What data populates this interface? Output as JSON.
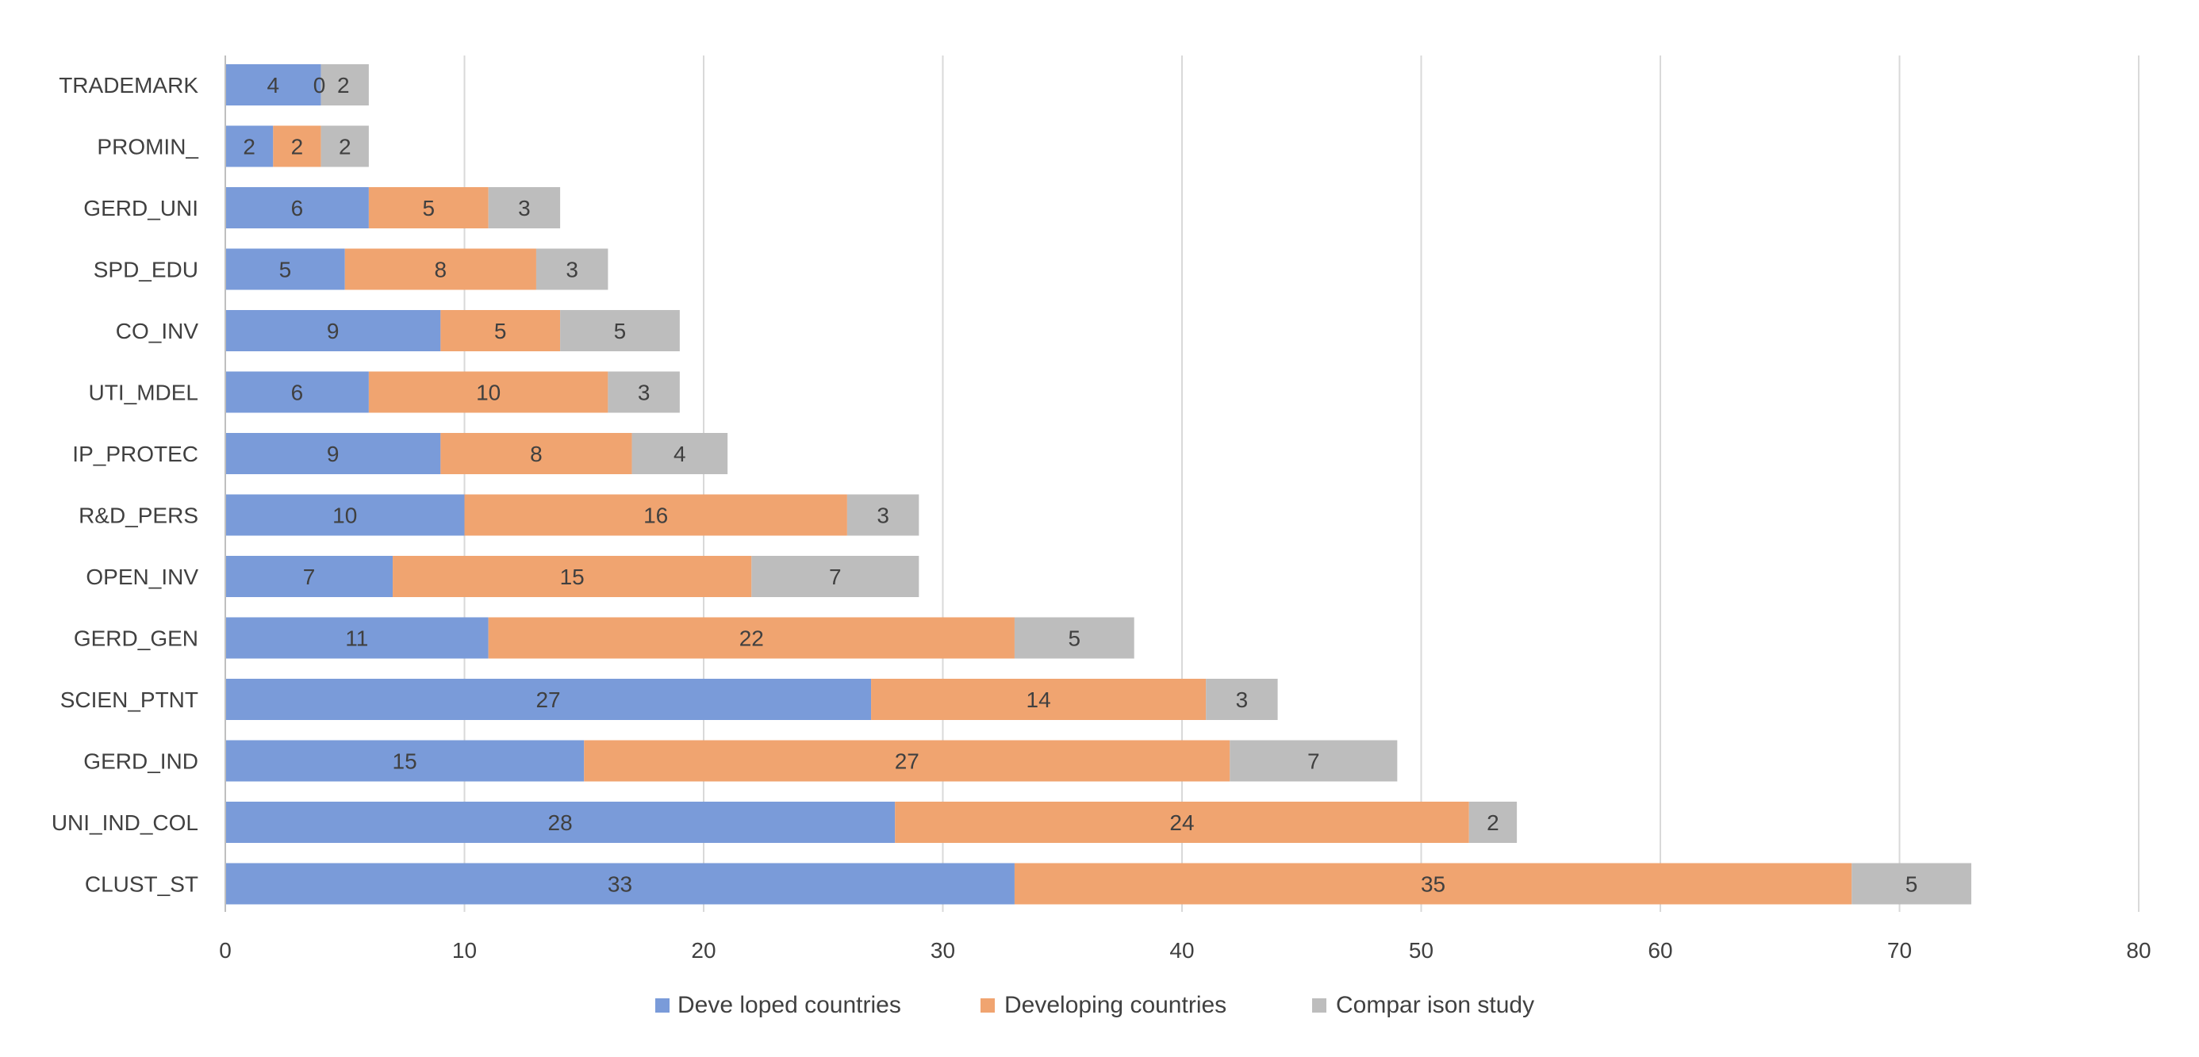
{
  "chart_data": {
    "type": "bar",
    "orientation": "horizontal",
    "stacked": true,
    "title": "",
    "xlabel": "",
    "ylabel": "",
    "xlim": [
      0,
      80
    ],
    "xticks": [
      0,
      10,
      20,
      30,
      40,
      50,
      60,
      70,
      80
    ],
    "xtick_labels": [
      "0",
      "10",
      "20",
      "30",
      "40",
      "50",
      "60",
      "70",
      "80"
    ],
    "grid": true,
    "legend_position": "bottom",
    "categories": [
      "TRADEMARK",
      "PROMIN_",
      "GERD_UNI",
      "SPD_EDU",
      "CO_INV",
      "UTI_MDEL",
      "IP_PROTEC",
      "R&D_PERS",
      "OPEN_INV",
      "GERD_GEN",
      "SCIEN_PTNT",
      "GERD_IND",
      "UNI_IND_COL",
      "CLUST_ST"
    ],
    "series": [
      {
        "name": "Developed countries",
        "color": "#7a9bd9",
        "values": [
          4,
          2,
          6,
          5,
          9,
          6,
          9,
          10,
          7,
          11,
          27,
          15,
          28,
          33
        ]
      },
      {
        "name": "Developing countries",
        "color": "#f0a470",
        "values": [
          0,
          2,
          5,
          8,
          5,
          10,
          8,
          16,
          15,
          22,
          14,
          27,
          24,
          35
        ]
      },
      {
        "name": "Comparison study",
        "color": "#bdbdbd",
        "values": [
          2,
          2,
          3,
          3,
          5,
          3,
          4,
          3,
          7,
          5,
          3,
          7,
          2,
          5
        ]
      }
    ],
    "legend": {
      "items": [
        "Developed countries",
        "Developing countries",
        "Comparison study"
      ],
      "label_display": [
        "Deve loped countries",
        "Developing countries",
        "Compar ison study"
      ]
    }
  }
}
